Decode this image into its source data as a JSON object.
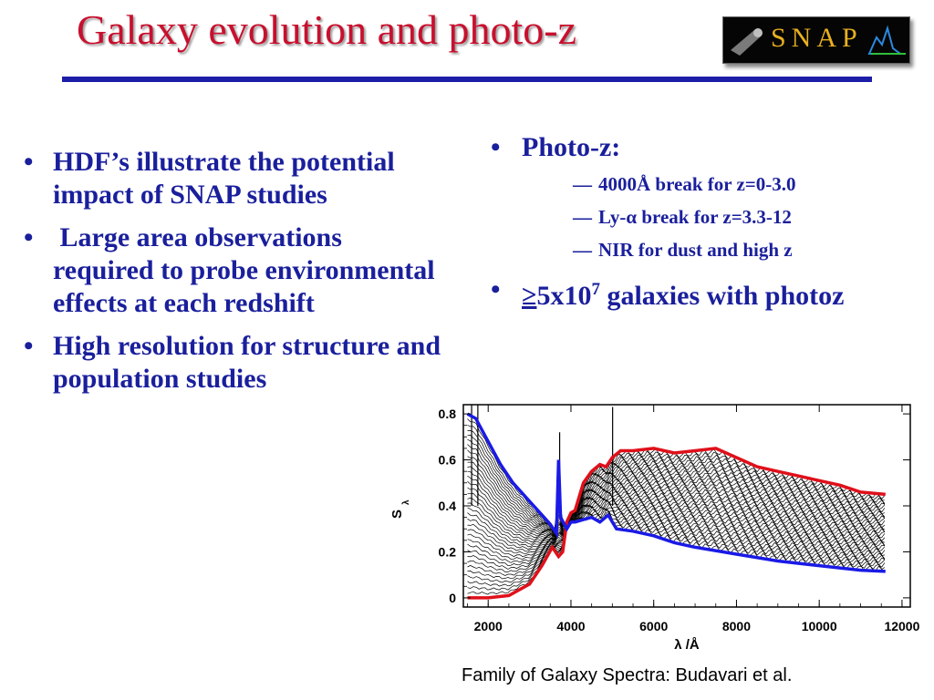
{
  "title": "Galaxy evolution and photo-z",
  "logo": {
    "text": "SNAP"
  },
  "left_bullets": [
    {
      "marker": "•",
      "text": "HDF’s illustrate the potential impact of SNAP studies"
    },
    {
      "marker": "•",
      "text": " Large area observations required to probe environmental effects at each redshift"
    },
    {
      "marker": "•",
      "text": "High resolution for structure and population studies"
    }
  ],
  "right": {
    "photoz": {
      "marker": "•",
      "label": "Photo-z:"
    },
    "sub_items": [
      {
        "dash": "—",
        "text": "4000Å break for z=0-3.0"
      },
      {
        "dash": "—",
        "prefix": "Ly-",
        "greek": "α",
        "text": " break for z=3.3-12"
      },
      {
        "dash": "—",
        "text": "NIR for dust and high z"
      }
    ],
    "galaxies": {
      "marker": "•",
      "geq": "≥",
      "base": "5x10",
      "exp": "7",
      "rest": " galaxies with photoz"
    }
  },
  "chart_data": {
    "type": "line",
    "xlabel": "λ /Å",
    "ylabel": "S",
    "ylabel_sub": "λ",
    "xlim": [
      1400,
      12200
    ],
    "ylim": [
      -0.04,
      0.84
    ],
    "xticks": [
      2000,
      4000,
      6000,
      8000,
      10000,
      12000
    ],
    "xtick_labels": [
      "2000",
      "4000",
      "6000",
      "8000",
      "10000",
      "12000"
    ],
    "yticks": [
      0,
      0.2,
      0.4,
      0.6,
      0.8
    ],
    "ytick_labels": [
      "0",
      "0.2",
      "0.4",
      "0.6",
      "0.8"
    ],
    "family_count": 34,
    "colors": {
      "family": "#000000",
      "red": "#e0101a",
      "blue": "#1a1ae6"
    },
    "series": [
      {
        "color": "red",
        "x": [
          1500,
          2000,
          2500,
          3000,
          3300,
          3550,
          3700,
          3800,
          3900,
          4000,
          4100,
          4300,
          4500,
          4700,
          4850,
          5000,
          5200,
          5500,
          6000,
          6500,
          7000,
          7500,
          8000,
          8500,
          9000,
          9500,
          10000,
          10500,
          11000,
          11600
        ],
        "y": [
          0.0,
          0.0,
          0.01,
          0.06,
          0.14,
          0.22,
          0.18,
          0.2,
          0.33,
          0.37,
          0.38,
          0.5,
          0.55,
          0.58,
          0.57,
          0.61,
          0.64,
          0.64,
          0.65,
          0.63,
          0.64,
          0.65,
          0.61,
          0.57,
          0.55,
          0.53,
          0.51,
          0.49,
          0.46,
          0.45
        ]
      },
      {
        "color": "blue",
        "x": [
          1500,
          1700,
          2000,
          2300,
          2600,
          3000,
          3300,
          3500,
          3650,
          3700,
          3750,
          3900,
          4000,
          4100,
          4300,
          4500,
          4700,
          4900,
          5100,
          5500,
          6000,
          6500,
          7000,
          8000,
          9000,
          10000,
          11000,
          11600
        ],
        "y": [
          0.8,
          0.78,
          0.68,
          0.58,
          0.5,
          0.42,
          0.36,
          0.32,
          0.28,
          0.6,
          0.35,
          0.3,
          0.33,
          0.33,
          0.34,
          0.35,
          0.33,
          0.36,
          0.3,
          0.29,
          0.27,
          0.24,
          0.22,
          0.19,
          0.16,
          0.14,
          0.12,
          0.115
        ]
      }
    ]
  },
  "caption": "Family of Galaxy Spectra: Budavari et al."
}
